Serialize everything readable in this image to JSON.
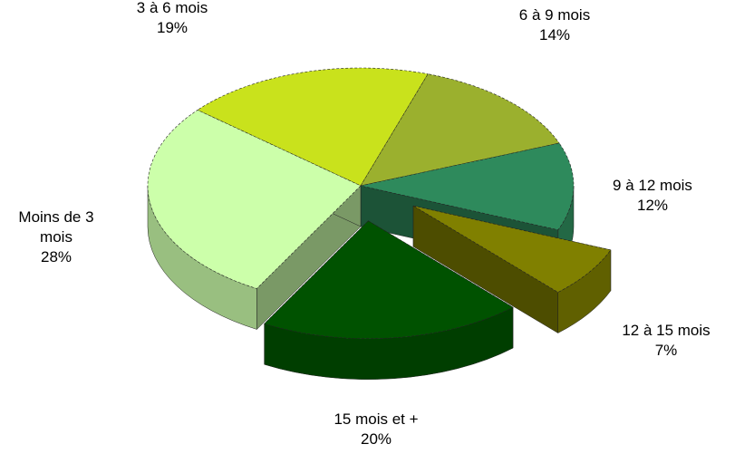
{
  "chart_data": {
    "type": "pie",
    "categories": [
      "3 à 6 mois",
      "6 à 9 mois",
      "9 à 12 mois",
      "12 à 15 mois",
      "15 mois et +",
      "Moins de 3 mois"
    ],
    "values": [
      19,
      14,
      12,
      7,
      20,
      28
    ],
    "value_labels": [
      "19%",
      "14%",
      "12%",
      "7%",
      "20%",
      "28%"
    ],
    "colors": [
      "#c9e21c",
      "#9bb02e",
      "#2e8a5c",
      "#808000",
      "#005200",
      "#ccffaa"
    ]
  }
}
